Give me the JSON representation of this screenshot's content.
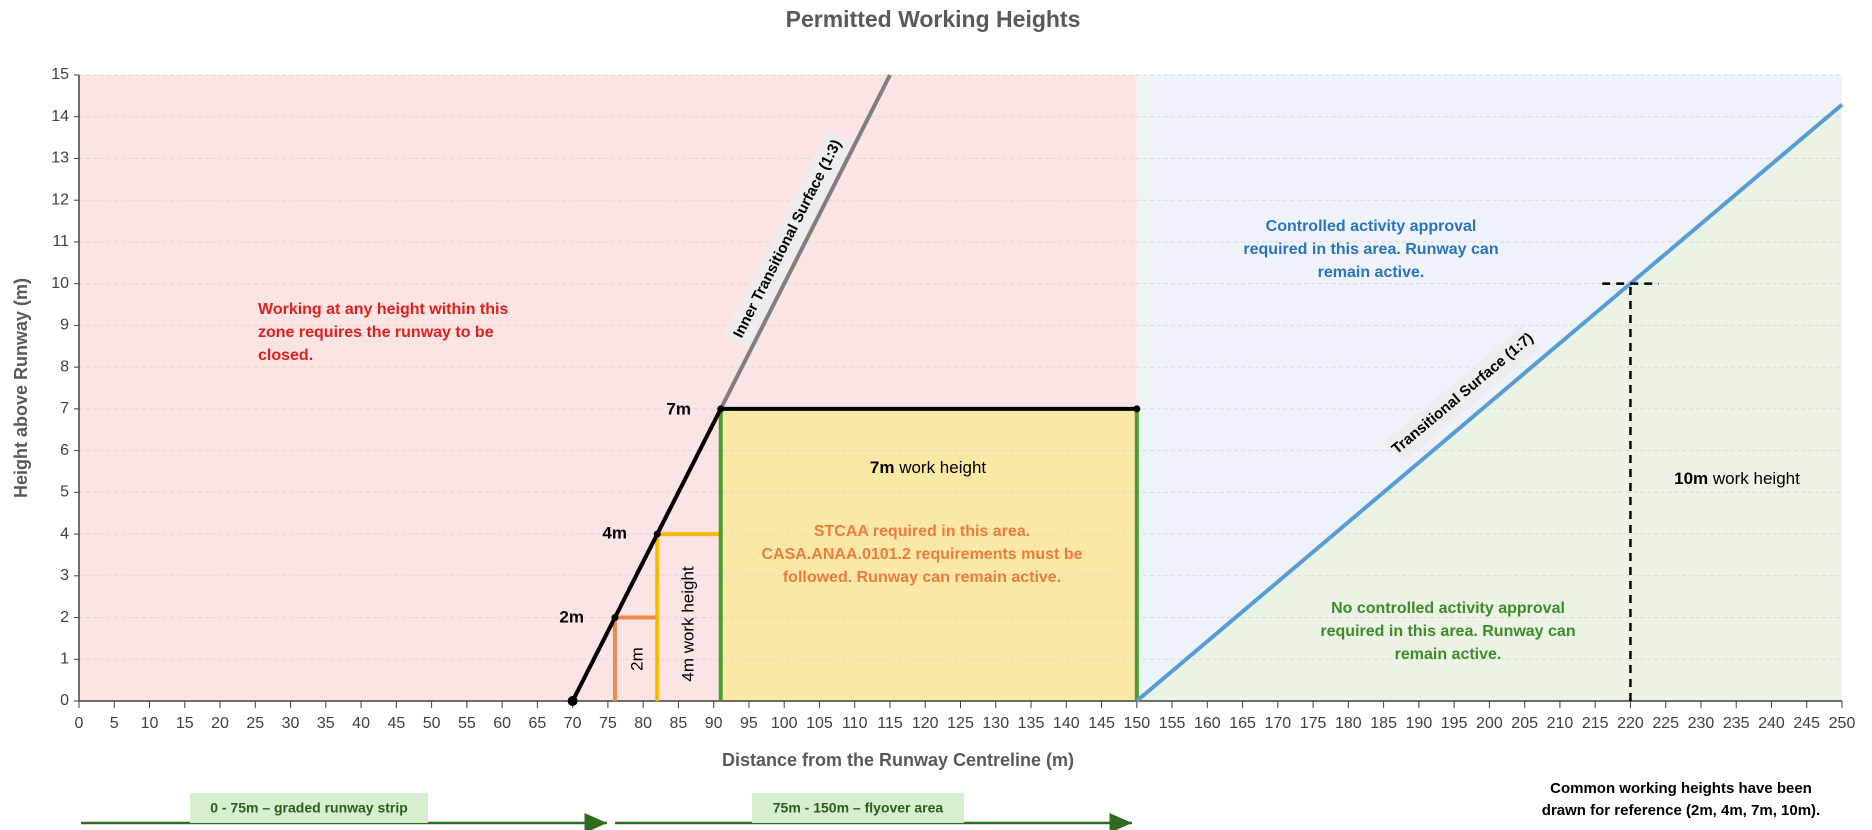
{
  "chart_data": {
    "type": "line",
    "title": "Permitted Working Heights",
    "x_label": "Distance from the Runway Centreline (m)",
    "y_label": "Height above Runway (m)",
    "xlim": [
      0,
      250
    ],
    "ylim": [
      0,
      15
    ],
    "xticks": [
      0,
      5,
      10,
      15,
      20,
      25,
      30,
      35,
      40,
      45,
      50,
      55,
      60,
      65,
      70,
      75,
      80,
      85,
      90,
      95,
      100,
      105,
      110,
      115,
      120,
      125,
      130,
      135,
      140,
      145,
      150,
      155,
      160,
      165,
      170,
      175,
      180,
      185,
      190,
      195,
      200,
      205,
      210,
      215,
      220,
      225,
      230,
      235,
      240,
      245,
      250
    ],
    "yticks": [
      0,
      1,
      2,
      3,
      4,
      5,
      6,
      7,
      8,
      9,
      10,
      11,
      12,
      13,
      14,
      15
    ],
    "grid": true,
    "zones": [
      {
        "x": [
          0,
          150,
          150,
          0
        ],
        "values": [
          0,
          0,
          15,
          15
        ],
        "color": "#fce4e4"
      },
      {
        "x": [
          150,
          250,
          250,
          150
        ],
        "values": [
          0,
          0,
          15,
          15
        ],
        "color": "#eef3f9"
      },
      {
        "x": [
          150,
          250,
          250
        ],
        "values": [
          0,
          0,
          14.29
        ],
        "color": "#eaf3e4"
      },
      {
        "x": [
          91,
          150,
          150,
          91
        ],
        "values": [
          0,
          0,
          7,
          7
        ],
        "color": "#fbe8a6"
      }
    ],
    "series": [
      {
        "x": [
          70,
          115
        ],
        "values": [
          0,
          15
        ],
        "color": "#7f7f7f"
      },
      {
        "x": [
          76,
          76,
          82
        ],
        "values": [
          0,
          2,
          2
        ],
        "color": "#f08a4b"
      },
      {
        "x": [
          82,
          82,
          91
        ],
        "values": [
          0,
          4,
          4
        ],
        "color": "#f5b800"
      },
      {
        "x": [
          91,
          91
        ],
        "values": [
          0,
          7
        ],
        "color": "#4f9a2e"
      },
      {
        "x": [
          150,
          150
        ],
        "values": [
          0,
          7
        ],
        "color": "#4f9a2e"
      },
      {
        "x": [
          70,
          76,
          82,
          91,
          150
        ],
        "values": [
          0,
          2,
          4,
          7,
          7
        ],
        "color": "#000000",
        "markers": true
      },
      {
        "x": [
          150,
          250
        ],
        "values": [
          0,
          14.29
        ],
        "color": "#5b9bd5"
      },
      {
        "x": [
          220,
          220
        ],
        "values": [
          0,
          10
        ],
        "color": "#000000",
        "dashed": true
      },
      {
        "x": [
          216,
          224
        ],
        "values": [
          10,
          10
        ],
        "color": "#000000",
        "dashed": true
      }
    ],
    "surface_labels": [
      "Inner Transitional Surface (1:3)",
      "Transitional Surface (1:7)"
    ],
    "point_labels": [
      "7m",
      "4m",
      "2m"
    ],
    "annotations": [
      {
        "lines": [
          "Working at any height within this",
          "zone requires the runway to be",
          "closed."
        ],
        "color": "#e0201b"
      },
      {
        "lines": [
          "Controlled activity approval",
          "required in this area. Runway can",
          "remain active."
        ],
        "color": "#2a73bd"
      },
      {
        "lines": [
          "STCAA required in this area.",
          "CASA.ANAA.0101.2 requirements must be",
          "followed. Runway can remain active."
        ],
        "color": "#ec7c3c"
      },
      {
        "lines": [
          "No controlled activity approval",
          "required in this area. Runway can",
          "remain active."
        ],
        "color": "#3f8a2a"
      }
    ],
    "work_heights": [
      {
        "bold": "7m",
        "text": "work height"
      },
      {
        "bold": "10m",
        "text": "work height"
      }
    ],
    "vertical_labels": [
      "2m",
      "4m work height"
    ],
    "areas": [
      "0 - 75m – graded runway strip",
      "75m - 150m – flyover area"
    ],
    "note": [
      "Common working heights have been",
      "drawn for reference (2m, 4m, 7m, 10m)."
    ]
  }
}
